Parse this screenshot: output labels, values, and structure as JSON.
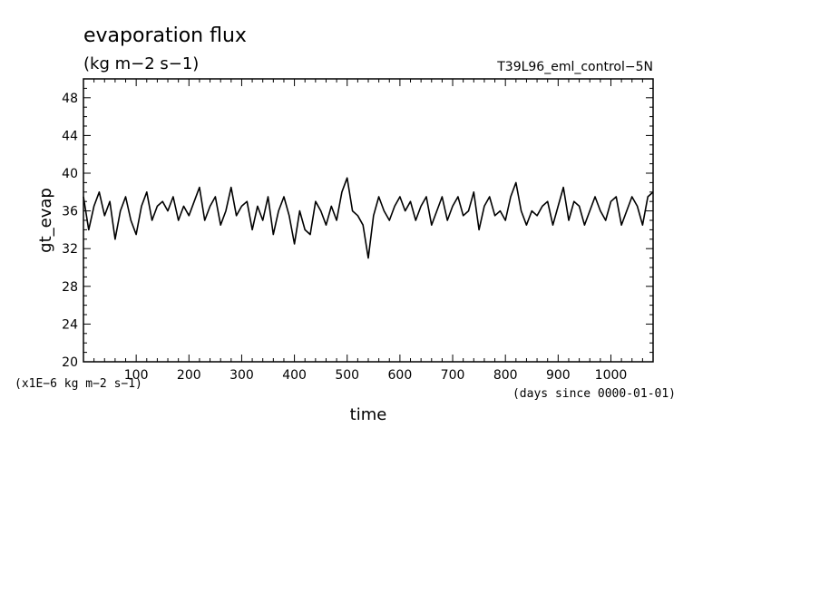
{
  "chart_data": {
    "type": "line",
    "title": "evaporation flux",
    "units_label": "(kg m−2 s−1)",
    "case_label": "T39L96_eml_control−5N",
    "xlabel": "time",
    "x_units": "(days since 0000-01-01)",
    "ylabel": "gt_evap",
    "y_scale_note": "(x1E−6 kg m−2 s−1)",
    "xlim": [
      0,
      1080
    ],
    "ylim": [
      20,
      50
    ],
    "x_ticks": [
      100,
      200,
      300,
      400,
      500,
      600,
      700,
      800,
      900,
      1000
    ],
    "y_ticks": [
      20,
      24,
      28,
      32,
      36,
      40,
      44,
      48
    ],
    "grid": false,
    "line_color": "#000000",
    "series": [
      {
        "x": [
          0,
          10,
          20,
          30,
          40,
          50,
          60,
          70,
          80,
          90,
          100,
          110,
          120,
          130,
          140,
          150,
          160,
          170,
          180,
          190,
          200,
          210,
          220,
          230,
          240,
          250,
          260,
          270,
          280,
          290,
          300,
          310,
          320,
          330,
          340,
          350,
          360,
          370,
          380,
          390,
          400,
          410,
          420,
          430,
          440,
          450,
          460,
          470,
          480,
          490,
          500,
          510,
          520,
          530,
          540,
          550,
          560,
          570,
          580,
          590,
          600,
          610,
          620,
          630,
          640,
          650,
          660,
          670,
          680,
          690,
          700,
          710,
          720,
          730,
          740,
          750,
          760,
          770,
          780,
          790,
          800,
          810,
          820,
          830,
          840,
          850,
          860,
          870,
          880,
          890,
          900,
          910,
          920,
          930,
          940,
          950,
          960,
          970,
          980,
          990,
          1000,
          1010,
          1020,
          1030,
          1040,
          1050,
          1060,
          1070,
          1080
        ],
        "y": [
          37.5,
          34.0,
          36.5,
          38.0,
          35.5,
          37.0,
          33.0,
          36.0,
          37.5,
          35.0,
          33.5,
          36.5,
          38.0,
          35.0,
          36.5,
          37.0,
          36.0,
          37.5,
          35.0,
          36.5,
          35.5,
          37.0,
          38.5,
          35.0,
          36.5,
          37.5,
          34.5,
          36.0,
          38.5,
          35.5,
          36.5,
          37.0,
          34.0,
          36.5,
          35.0,
          37.5,
          33.5,
          36.0,
          37.5,
          35.5,
          32.5,
          36.0,
          34.0,
          33.5,
          37.0,
          36.0,
          34.5,
          36.5,
          35.0,
          38.0,
          39.5,
          36.0,
          35.5,
          34.5,
          31.0,
          35.5,
          37.5,
          36.0,
          35.0,
          36.5,
          37.5,
          36.0,
          37.0,
          35.0,
          36.5,
          37.5,
          34.5,
          36.0,
          37.5,
          35.0,
          36.5,
          37.5,
          35.5,
          36.0,
          38.0,
          34.0,
          36.5,
          37.5,
          35.5,
          36.0,
          35.0,
          37.5,
          39.0,
          36.0,
          34.5,
          36.0,
          35.5,
          36.5,
          37.0,
          34.5,
          36.5,
          38.5,
          35.0,
          37.0,
          36.5,
          34.5,
          36.0,
          37.5,
          36.0,
          35.0,
          37.0,
          37.5,
          34.5,
          36.0,
          37.5,
          36.5,
          34.5,
          37.5,
          38.0
        ]
      }
    ]
  }
}
